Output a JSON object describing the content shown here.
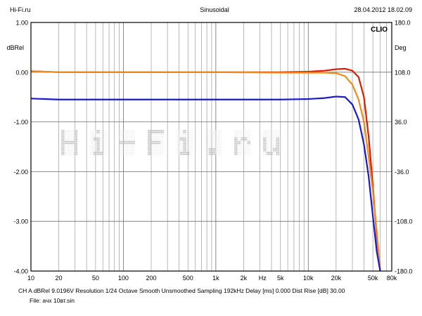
{
  "header": {
    "left": "Hi-Fi.ru",
    "center": "Sinusoidal",
    "right": "28.04.2012 18.02.09"
  },
  "brand": "CLIO",
  "watermark": "Hi-Fi.ru",
  "footer": {
    "line1": "CH A   dBRel 9.0196V  Resolution 1/24 Octave   Smooth Unsmoothed   Sampling 192kHz   Delay [ms] 0.000     Dist Rise [dB] 30.00",
    "line2": "File: ачх 10вт.sin"
  },
  "chart_data": {
    "type": "line",
    "xscale": "log",
    "xlim": [
      10,
      80000
    ],
    "x_ticks": [
      10,
      20,
      50,
      100,
      200,
      500,
      1000,
      2000,
      5000,
      10000,
      20000,
      50000,
      80000
    ],
    "x_tick_labels": [
      "10",
      "20",
      "50",
      "100",
      "200",
      "500",
      "1k",
      "2k",
      "5k",
      "10k",
      "20k",
      "50k",
      "80k"
    ],
    "x_unit": "Hz",
    "ylabel_left": "dBRel",
    "ylim_left": [
      -4,
      1
    ],
    "y_ticks_left": [
      "1.00",
      "0.00",
      "-1.00",
      "-2.00",
      "-3.00",
      "-4.00"
    ],
    "ylabel_right": "Deg",
    "ylim_right": [
      -180,
      180
    ],
    "y_ticks_right": [
      "180.0",
      "108.0",
      "36.0",
      "-36.0",
      "-108.0",
      "-180.0"
    ],
    "grid": true,
    "series": [
      {
        "color": "#dd1c00",
        "points": [
          [
            10,
            0.02
          ],
          [
            20,
            0.0
          ],
          [
            100,
            0.0
          ],
          [
            1000,
            0.0
          ],
          [
            5000,
            0.0
          ],
          [
            10000,
            0.01
          ],
          [
            15000,
            0.03
          ],
          [
            20000,
            0.06
          ],
          [
            25000,
            0.07
          ],
          [
            30000,
            0.03
          ],
          [
            35000,
            -0.1
          ],
          [
            40000,
            -0.5
          ],
          [
            45000,
            -1.3
          ],
          [
            50000,
            -2.3
          ],
          [
            55000,
            -3.3
          ],
          [
            60000,
            -4.0
          ]
        ]
      },
      {
        "color": "#f08a1c",
        "points": [
          [
            10,
            0.02
          ],
          [
            20,
            0.0
          ],
          [
            100,
            0.0
          ],
          [
            1000,
            0.0
          ],
          [
            5000,
            -0.01
          ],
          [
            10000,
            -0.01
          ],
          [
            15000,
            -0.01
          ],
          [
            20000,
            -0.02
          ],
          [
            25000,
            -0.08
          ],
          [
            30000,
            -0.25
          ],
          [
            35000,
            -0.55
          ],
          [
            40000,
            -1.0
          ],
          [
            45000,
            -1.7
          ],
          [
            50000,
            -2.4
          ],
          [
            55000,
            -3.2
          ],
          [
            60000,
            -4.0
          ]
        ]
      },
      {
        "color": "#1a1acd",
        "points": [
          [
            10,
            -0.53
          ],
          [
            20,
            -0.55
          ],
          [
            100,
            -0.55
          ],
          [
            1000,
            -0.55
          ],
          [
            5000,
            -0.55
          ],
          [
            10000,
            -0.54
          ],
          [
            15000,
            -0.52
          ],
          [
            20000,
            -0.49
          ],
          [
            25000,
            -0.5
          ],
          [
            30000,
            -0.65
          ],
          [
            35000,
            -0.95
          ],
          [
            40000,
            -1.45
          ],
          [
            45000,
            -2.1
          ],
          [
            50000,
            -2.9
          ],
          [
            55000,
            -3.6
          ],
          [
            60000,
            -4.0
          ]
        ]
      }
    ]
  }
}
